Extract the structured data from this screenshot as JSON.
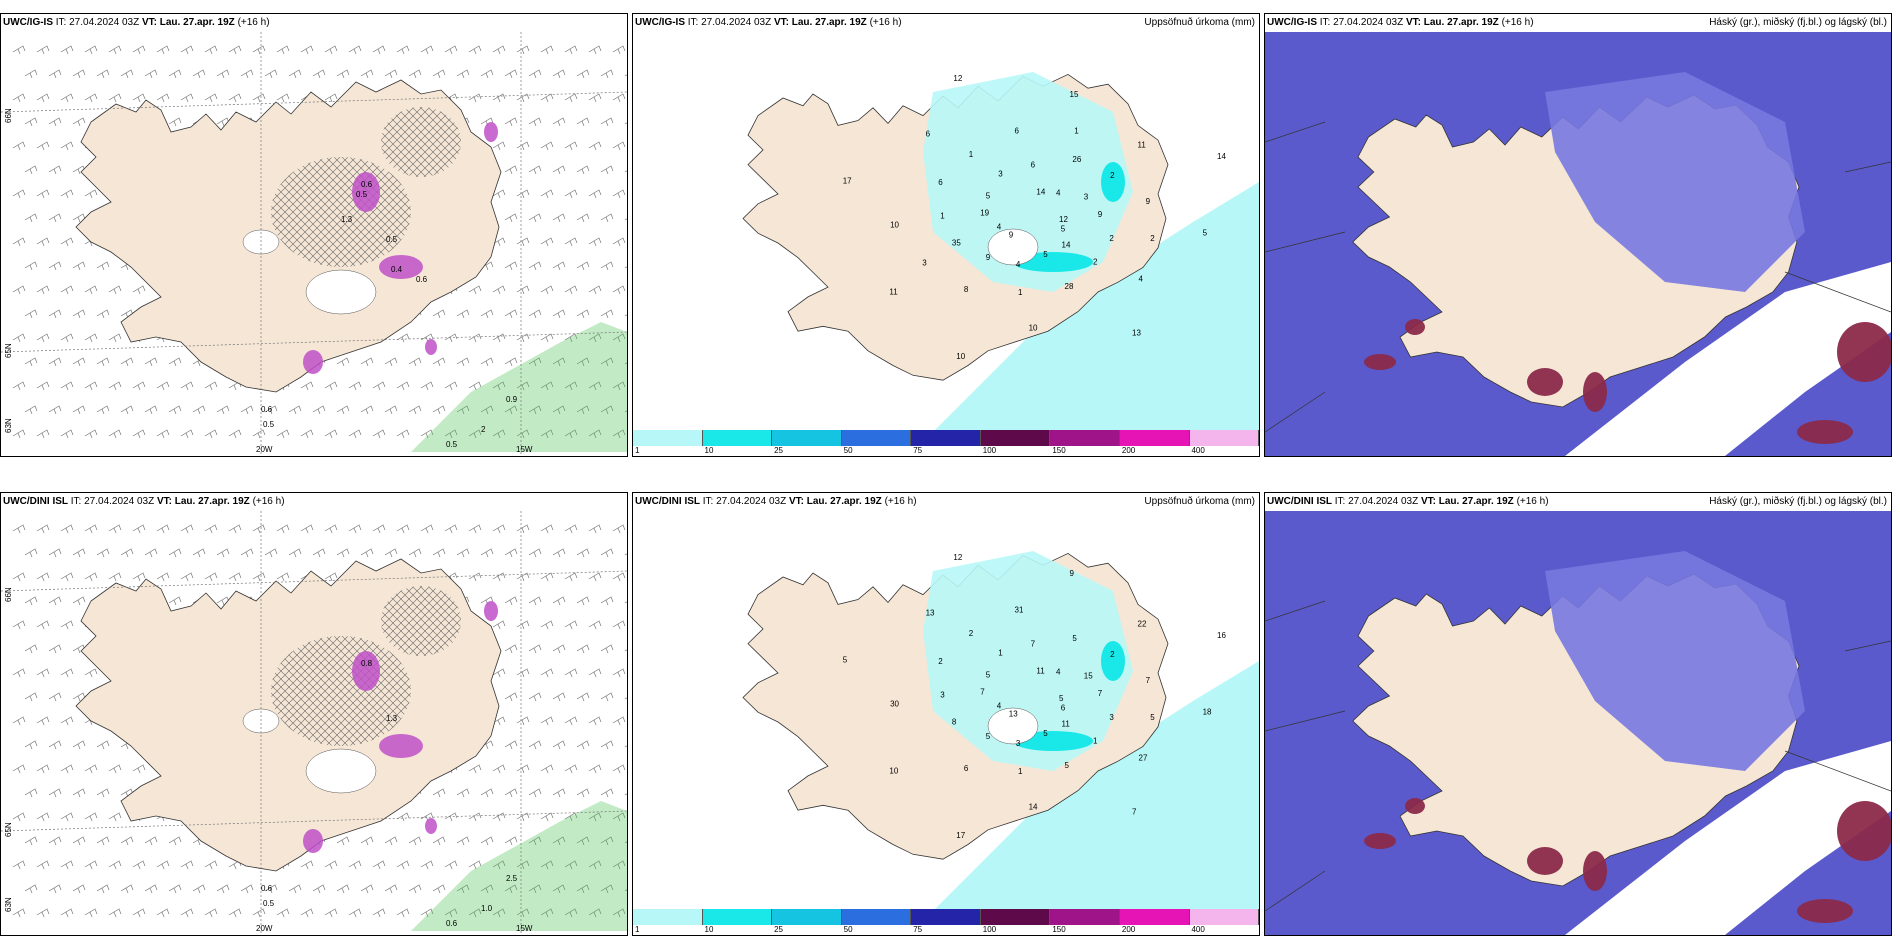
{
  "rows": [
    {
      "model": "UWC/IG-IS",
      "wind": {
        "it_label": "IT:",
        "it_value": "27.04.2024 03Z",
        "vt_label": "VT:",
        "vt_value": "Lau. 27.apr. 19Z",
        "lead": "(+16 h)",
        "lat_labels": [
          "66N",
          "65N",
          "63N"
        ],
        "lon_labels": [
          "20W",
          "15W"
        ],
        "values": [
          "0.6",
          "0.5",
          "0.9",
          "0.5",
          "2",
          "0.5",
          "0.6",
          "0.5",
          "1.3",
          "0.4",
          "0.6"
        ]
      },
      "precip": {
        "it_label": "IT:",
        "it_value": "27.04.2024 03Z",
        "vt_label": "VT:",
        "vt_value": "Lau. 27.apr. 19Z",
        "lead": "(+16 h)",
        "title": "Uppsöfnuð úrkoma (mm)",
        "values": [
          "12",
          "9",
          "14",
          "14",
          "19",
          "3",
          "4",
          "3",
          "2",
          "35",
          "26",
          "28",
          "6",
          "9",
          "8",
          "6",
          "4",
          "10",
          "11",
          "10",
          "6",
          "5",
          "11",
          "15",
          "13",
          "17",
          "14",
          "10",
          "12",
          "5",
          "4",
          "4",
          "5",
          "5",
          "9",
          "9",
          "6",
          "2",
          "1",
          "2",
          "1",
          "1",
          "2",
          "3",
          "1"
        ]
      },
      "clouds": {
        "it_label": "IT:",
        "it_value": "27.04.2024 03Z",
        "vt_label": "VT:",
        "vt_value": "Lau. 27.apr. 19Z",
        "lead": "(+16 h)",
        "title": "Háský (gr.), miðský (fj.bl.) og lágský (bl.)"
      }
    },
    {
      "model": "UWC/DINI ISL",
      "wind": {
        "it_label": "IT:",
        "it_value": "27.04.2024 03Z",
        "vt_label": "VT:",
        "vt_value": "Lau. 27.apr. 19Z",
        "lead": "(+16 h)",
        "lat_labels": [
          "66N",
          "65N",
          "63N"
        ],
        "lon_labels": [
          "20W",
          "15W"
        ],
        "values": [
          "0.6",
          "0.5",
          "2.5",
          "0.6",
          "1.0",
          "1.3",
          "0.8"
        ]
      },
      "precip": {
        "it_label": "IT:",
        "it_value": "27.04.2024 03Z",
        "vt_label": "VT:",
        "vt_value": "Lau. 27.apr. 19Z",
        "lead": "(+16 h)",
        "title": "Uppsöfnuð úrkoma (mm)",
        "values": [
          "5",
          "13",
          "11",
          "11",
          "7",
          "15",
          "3",
          "1",
          "3",
          "8",
          "5",
          "5",
          "2",
          "7",
          "6",
          "31",
          "27",
          "30",
          "22",
          "14",
          "13",
          "18",
          "10",
          "9",
          "7",
          "5",
          "16",
          "17",
          "12",
          "6",
          "4",
          "4",
          "5",
          "5",
          "7",
          "5",
          "7",
          "1",
          "3",
          "2",
          "1",
          "2",
          "5"
        ]
      },
      "clouds": {
        "it_label": "IT:",
        "it_value": "27.04.2024 03Z",
        "vt_label": "VT:",
        "vt_value": "Lau. 27.apr. 19Z",
        "lead": "(+16 h)",
        "title": "Háský (gr.), miðský (fj.bl.) og lágský (bl.)"
      }
    }
  ],
  "precip_legend": {
    "ticks": [
      "1",
      "10",
      "25",
      "50",
      "75",
      "100",
      "150",
      "200",
      "400"
    ],
    "colors": [
      "#b8f7f7",
      "#1ae8e8",
      "#14c4e0",
      "#2a6ee0",
      "#2424a8",
      "#5e0a4a",
      "#a0148a",
      "#e614b4",
      "#f4b4ec"
    ]
  },
  "colors": {
    "land": "#f5e6d6",
    "sea": "#ffffff",
    "precip_light": "#b8f7f7",
    "precip_mid": "#1ae8e8",
    "cloud_mid": "#5a5acc",
    "cloud_low": "#7878e0",
    "cloud_high": "#8b2a4a",
    "wind_green": "#4ec45a",
    "wind_purple": "#c050c8"
  }
}
